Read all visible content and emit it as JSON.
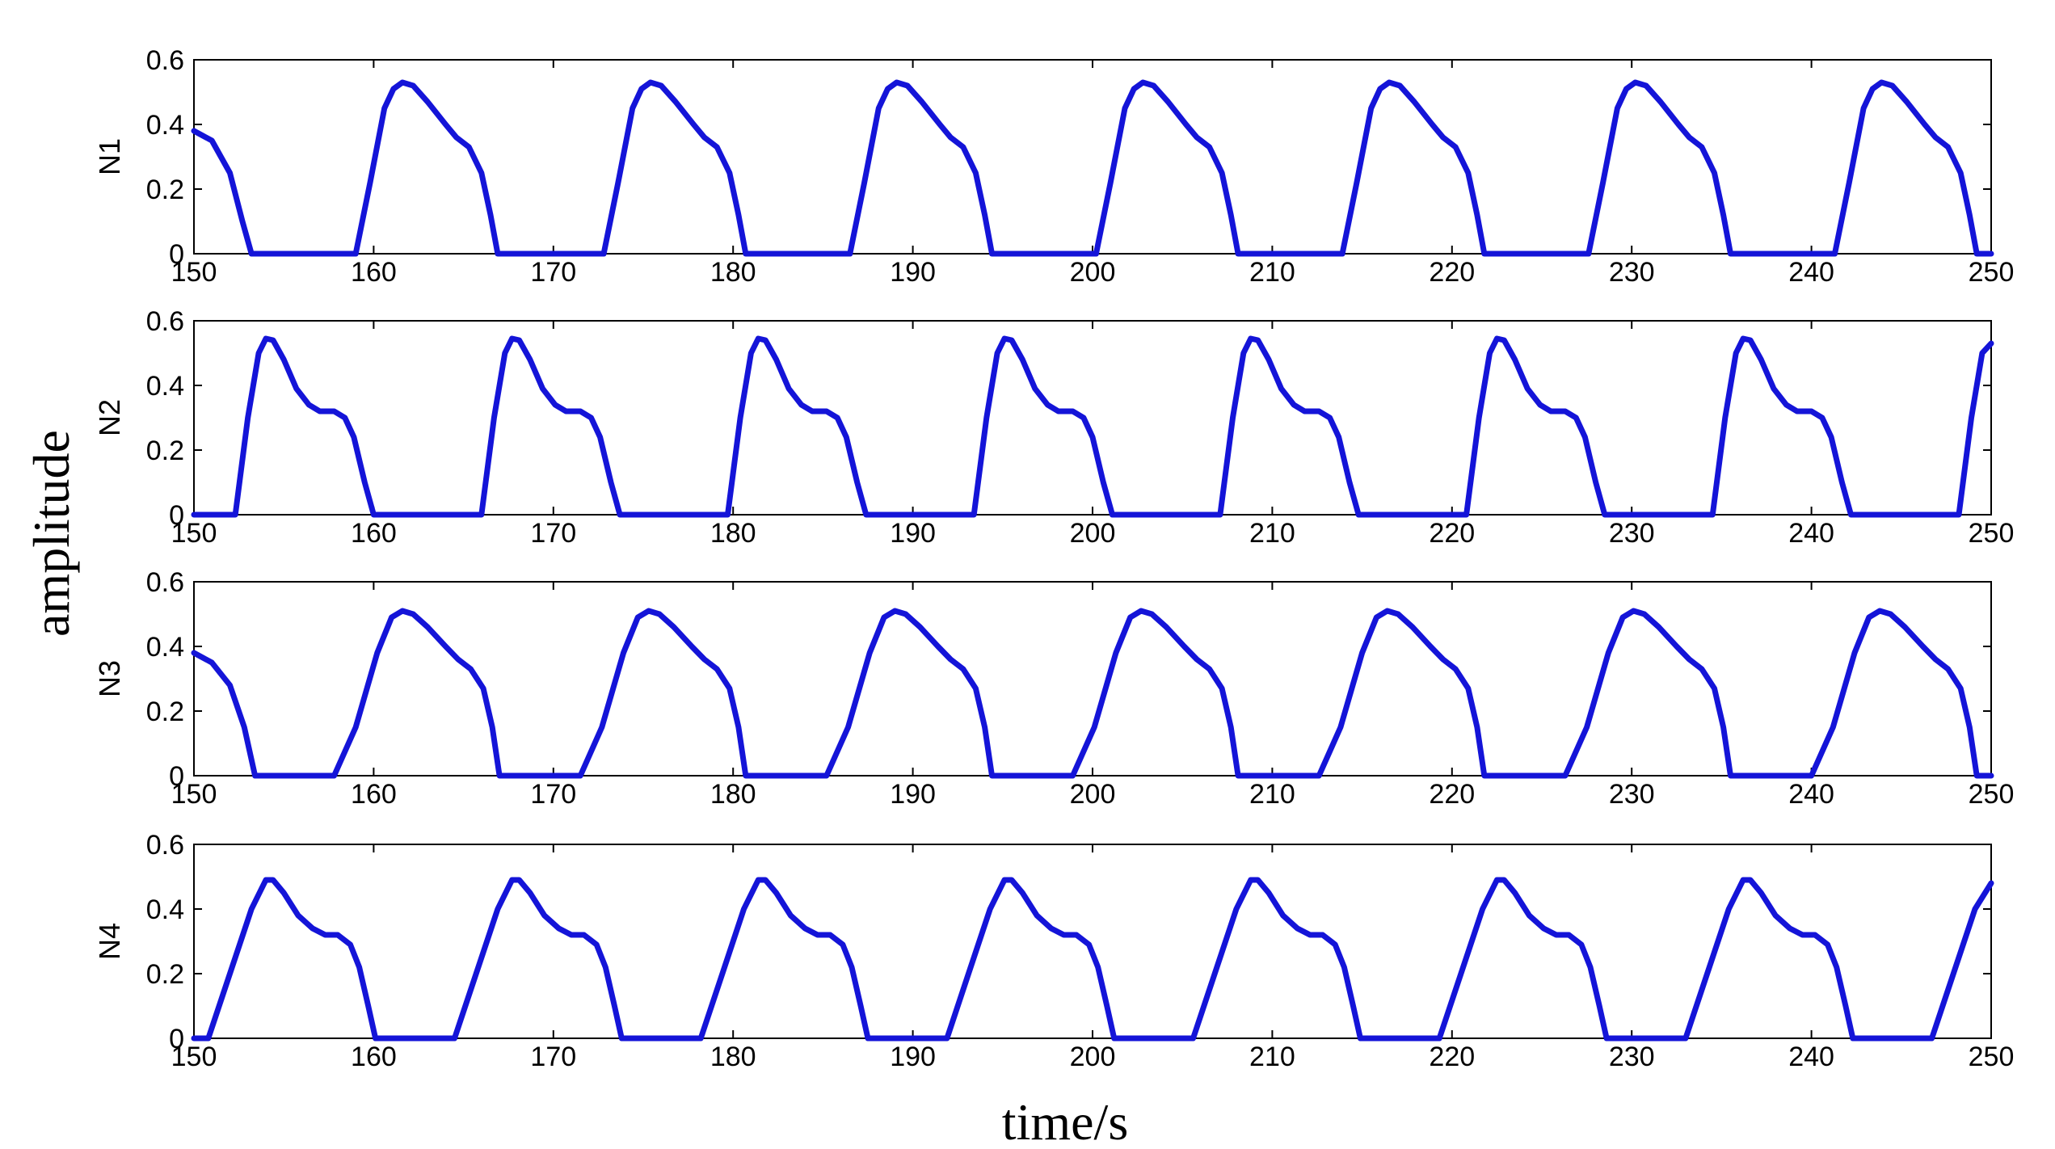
{
  "chart_data": {
    "type": "line",
    "xlabel": "time/s",
    "ylabel": "amplitude",
    "line_color": "#1414d8",
    "xlim": [
      150,
      250
    ],
    "ylim": [
      0,
      0.6
    ],
    "x_ticks": [
      150,
      160,
      170,
      180,
      190,
      200,
      210,
      220,
      230,
      240,
      250
    ],
    "y_ticks": [
      "0",
      "0.2",
      "0.4",
      "0.6"
    ],
    "panels": [
      {
        "name": "N1",
        "ylabel": "N1",
        "x": [
          150,
          151,
          152,
          152.7,
          153.2,
          159,
          159.8,
          160.6,
          161.1,
          161.6,
          162.2,
          163,
          164,
          164.6,
          165.3,
          166,
          166.5,
          166.9,
          172.8,
          173.6,
          174.4,
          174.9,
          175.4,
          176,
          176.8,
          177.8,
          178.4,
          179.1,
          179.8,
          180.3,
          180.7,
          186.5,
          187.3,
          188.1,
          188.6,
          189.1,
          189.7,
          190.5,
          191.5,
          192.1,
          192.8,
          193.5,
          194,
          194.4,
          200.2,
          201,
          201.8,
          202.3,
          202.8,
          203.4,
          204.2,
          205.2,
          205.8,
          206.5,
          207.2,
          207.7,
          208.1,
          213.9,
          214.7,
          215.5,
          216,
          216.5,
          217.1,
          217.9,
          218.9,
          219.5,
          220.2,
          220.9,
          221.4,
          221.8,
          227.6,
          228.4,
          229.2,
          229.7,
          230.2,
          230.8,
          231.6,
          232.6,
          233.2,
          233.9,
          234.6,
          235.1,
          235.5,
          241.3,
          242.1,
          242.9,
          243.4,
          243.9,
          244.5,
          245.3,
          246.3,
          246.9,
          247.6,
          248.3,
          248.8,
          249.2,
          250
        ],
        "y": [
          0.38,
          0.35,
          0.25,
          0.1,
          0,
          0,
          0.22,
          0.45,
          0.51,
          0.53,
          0.52,
          0.47,
          0.4,
          0.36,
          0.33,
          0.25,
          0.12,
          0,
          0,
          0.22,
          0.45,
          0.51,
          0.53,
          0.52,
          0.47,
          0.4,
          0.36,
          0.33,
          0.25,
          0.12,
          0,
          0,
          0.22,
          0.45,
          0.51,
          0.53,
          0.52,
          0.47,
          0.4,
          0.36,
          0.33,
          0.25,
          0.12,
          0,
          0,
          0.22,
          0.45,
          0.51,
          0.53,
          0.52,
          0.47,
          0.4,
          0.36,
          0.33,
          0.25,
          0.12,
          0,
          0,
          0.22,
          0.45,
          0.51,
          0.53,
          0.52,
          0.47,
          0.4,
          0.36,
          0.33,
          0.25,
          0.12,
          0,
          0,
          0.22,
          0.45,
          0.51,
          0.53,
          0.52,
          0.47,
          0.4,
          0.36,
          0.33,
          0.25,
          0.12,
          0,
          0,
          0.22,
          0.45,
          0.51,
          0.53,
          0.52,
          0.47,
          0.4,
          0.36,
          0.33,
          0.25,
          0.12,
          0,
          0
        ]
      },
      {
        "name": "N2",
        "ylabel": "N2",
        "x": [
          150,
          152.3,
          153,
          153.6,
          154,
          154.4,
          155,
          155.7,
          156.4,
          157,
          157.8,
          158.4,
          158.9,
          159.5,
          160,
          166,
          166.7,
          167.3,
          167.7,
          168.1,
          168.7,
          169.4,
          170.1,
          170.7,
          171.5,
          172.1,
          172.6,
          173.2,
          173.7,
          179.7,
          180.4,
          181,
          181.4,
          181.8,
          182.4,
          183.1,
          183.8,
          184.4,
          185.2,
          185.8,
          186.3,
          186.9,
          187.4,
          193.4,
          194.1,
          194.7,
          195.1,
          195.5,
          196.1,
          196.8,
          197.5,
          198.1,
          198.9,
          199.5,
          200,
          200.6,
          201.1,
          207.1,
          207.8,
          208.4,
          208.8,
          209.2,
          209.8,
          210.5,
          211.2,
          211.8,
          212.6,
          213.2,
          213.7,
          214.3,
          214.8,
          220.8,
          221.5,
          222.1,
          222.5,
          222.9,
          223.5,
          224.2,
          224.9,
          225.5,
          226.3,
          226.9,
          227.4,
          228,
          228.5,
          234.5,
          235.2,
          235.8,
          236.2,
          236.6,
          237.2,
          237.9,
          238.6,
          239.2,
          240,
          240.6,
          241.1,
          241.7,
          242.2,
          248.2,
          248.9,
          249.5,
          250
        ],
        "y": [
          0,
          0,
          0.3,
          0.5,
          0.545,
          0.54,
          0.48,
          0.39,
          0.34,
          0.32,
          0.32,
          0.3,
          0.24,
          0.1,
          0,
          0,
          0.3,
          0.5,
          0.545,
          0.54,
          0.48,
          0.39,
          0.34,
          0.32,
          0.32,
          0.3,
          0.24,
          0.1,
          0,
          0,
          0.3,
          0.5,
          0.545,
          0.54,
          0.48,
          0.39,
          0.34,
          0.32,
          0.32,
          0.3,
          0.24,
          0.1,
          0,
          0,
          0.3,
          0.5,
          0.545,
          0.54,
          0.48,
          0.39,
          0.34,
          0.32,
          0.32,
          0.3,
          0.24,
          0.1,
          0,
          0,
          0.3,
          0.5,
          0.545,
          0.54,
          0.48,
          0.39,
          0.34,
          0.32,
          0.32,
          0.3,
          0.24,
          0.1,
          0,
          0,
          0.3,
          0.5,
          0.545,
          0.54,
          0.48,
          0.39,
          0.34,
          0.32,
          0.32,
          0.3,
          0.24,
          0.1,
          0,
          0,
          0.3,
          0.5,
          0.545,
          0.54,
          0.48,
          0.39,
          0.34,
          0.32,
          0.32,
          0.3,
          0.24,
          0.1,
          0,
          0,
          0.3,
          0.5,
          0.53
        ]
      },
      {
        "name": "N3",
        "ylabel": "N3",
        "x": [
          150,
          151,
          152,
          152.8,
          153.4,
          157.8,
          159,
          160.2,
          161,
          161.6,
          162.2,
          163,
          164,
          164.7,
          165.4,
          166.1,
          166.6,
          167,
          171.5,
          172.7,
          173.9,
          174.7,
          175.3,
          175.9,
          176.7,
          177.7,
          178.4,
          179.1,
          179.8,
          180.3,
          180.7,
          185.2,
          186.4,
          187.6,
          188.4,
          189,
          189.6,
          190.4,
          191.4,
          192.1,
          192.8,
          193.5,
          194,
          194.4,
          198.9,
          200.1,
          201.3,
          202.1,
          202.7,
          203.3,
          204.1,
          205.1,
          205.8,
          206.5,
          207.2,
          207.7,
          208.1,
          212.6,
          213.8,
          215,
          215.8,
          216.4,
          217,
          217.8,
          218.8,
          219.5,
          220.2,
          220.9,
          221.4,
          221.8,
          226.3,
          227.5,
          228.7,
          229.5,
          230.1,
          230.7,
          231.5,
          232.5,
          233.2,
          233.9,
          234.6,
          235.1,
          235.5,
          240,
          241.2,
          242.4,
          243.2,
          243.8,
          244.4,
          245.2,
          246.2,
          246.9,
          247.6,
          248.3,
          248.8,
          249.2,
          250
        ],
        "y": [
          0.38,
          0.35,
          0.28,
          0.15,
          0,
          0,
          0.15,
          0.38,
          0.49,
          0.51,
          0.5,
          0.46,
          0.4,
          0.36,
          0.33,
          0.27,
          0.15,
          0,
          0,
          0.15,
          0.38,
          0.49,
          0.51,
          0.5,
          0.46,
          0.4,
          0.36,
          0.33,
          0.27,
          0.15,
          0,
          0,
          0.15,
          0.38,
          0.49,
          0.51,
          0.5,
          0.46,
          0.4,
          0.36,
          0.33,
          0.27,
          0.15,
          0,
          0,
          0.15,
          0.38,
          0.49,
          0.51,
          0.5,
          0.46,
          0.4,
          0.36,
          0.33,
          0.27,
          0.15,
          0,
          0,
          0.15,
          0.38,
          0.49,
          0.51,
          0.5,
          0.46,
          0.4,
          0.36,
          0.33,
          0.27,
          0.15,
          0,
          0,
          0.15,
          0.38,
          0.49,
          0.51,
          0.5,
          0.46,
          0.4,
          0.36,
          0.33,
          0.27,
          0.15,
          0,
          0,
          0.15,
          0.38,
          0.49,
          0.51,
          0.5,
          0.46,
          0.4,
          0.36,
          0.33,
          0.27,
          0.15,
          0,
          0
        ]
      },
      {
        "name": "N4",
        "ylabel": "N4",
        "x": [
          150,
          150.8,
          152,
          153.2,
          154,
          154.4,
          155,
          155.8,
          156.6,
          157.3,
          158,
          158.7,
          159.2,
          159.7,
          160.1,
          164.5,
          165.7,
          166.9,
          167.7,
          168.1,
          168.7,
          169.5,
          170.3,
          171,
          171.7,
          172.4,
          172.9,
          173.4,
          173.8,
          178.2,
          179.4,
          180.6,
          181.4,
          181.8,
          182.4,
          183.2,
          184,
          184.7,
          185.4,
          186.1,
          186.6,
          187.1,
          187.5,
          191.9,
          193.1,
          194.3,
          195.1,
          195.5,
          196.1,
          196.9,
          197.7,
          198.4,
          199.1,
          199.8,
          200.3,
          200.8,
          201.2,
          205.6,
          206.8,
          208,
          208.8,
          209.2,
          209.8,
          210.6,
          211.4,
          212.1,
          212.8,
          213.5,
          214,
          214.5,
          214.9,
          219.3,
          220.5,
          221.7,
          222.5,
          222.9,
          223.5,
          224.3,
          225.1,
          225.8,
          226.5,
          227.2,
          227.7,
          228.2,
          228.6,
          233,
          234.2,
          235.4,
          236.2,
          236.6,
          237.2,
          238,
          238.8,
          239.5,
          240.2,
          240.9,
          241.4,
          241.9,
          242.3,
          246.7,
          247.9,
          249.1,
          250
        ],
        "y": [
          0,
          0,
          0.2,
          0.4,
          0.49,
          0.49,
          0.45,
          0.38,
          0.34,
          0.32,
          0.32,
          0.29,
          0.22,
          0.1,
          0,
          0,
          0.2,
          0.4,
          0.49,
          0.49,
          0.45,
          0.38,
          0.34,
          0.32,
          0.32,
          0.29,
          0.22,
          0.1,
          0,
          0,
          0.2,
          0.4,
          0.49,
          0.49,
          0.45,
          0.38,
          0.34,
          0.32,
          0.32,
          0.29,
          0.22,
          0.1,
          0,
          0,
          0.2,
          0.4,
          0.49,
          0.49,
          0.45,
          0.38,
          0.34,
          0.32,
          0.32,
          0.29,
          0.22,
          0.1,
          0,
          0,
          0.2,
          0.4,
          0.49,
          0.49,
          0.45,
          0.38,
          0.34,
          0.32,
          0.32,
          0.29,
          0.22,
          0.1,
          0,
          0,
          0.2,
          0.4,
          0.49,
          0.49,
          0.45,
          0.38,
          0.34,
          0.32,
          0.32,
          0.29,
          0.22,
          0.1,
          0,
          0,
          0.2,
          0.4,
          0.49,
          0.49,
          0.45,
          0.38,
          0.34,
          0.32,
          0.32,
          0.29,
          0.22,
          0.1,
          0,
          0,
          0.2,
          0.4,
          0.48
        ]
      }
    ]
  }
}
